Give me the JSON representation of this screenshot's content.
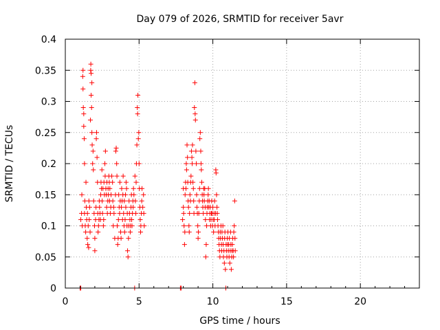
{
  "chart_data": {
    "type": "scatter",
    "title": "Day 079 of 2026, SRMTID for receiver 5avr",
    "xlabel": "GPS time / hours",
    "ylabel": "SRMTID / TECUs",
    "xlim": [
      0,
      24
    ],
    "ylim": [
      0,
      0.4
    ],
    "xticks": [
      0,
      5,
      10,
      15,
      20
    ],
    "xtick_labels": [
      "0",
      "5",
      "10",
      "15",
      "20"
    ],
    "yticks": [
      0,
      0.05,
      0.1,
      0.15,
      0.2,
      0.25,
      0.3,
      0.35,
      0.4
    ],
    "ytick_labels": [
      "0",
      "0.05",
      "0.1",
      "0.15",
      "0.2",
      "0.25",
      "0.3",
      "0.35",
      "0.4"
    ],
    "grid": true,
    "marker": "plus",
    "series_color": "#ff0000",
    "series": [
      {
        "name": "SRMTID",
        "points": [
          [
            1.0,
            0.0
          ],
          [
            1.05,
            0.0
          ],
          [
            1.05,
            0.11
          ],
          [
            1.1,
            0.12
          ],
          [
            1.12,
            0.15
          ],
          [
            1.15,
            0.1
          ],
          [
            1.18,
            0.34
          ],
          [
            1.2,
            0.35
          ],
          [
            1.2,
            0.32
          ],
          [
            1.22,
            0.29
          ],
          [
            1.25,
            0.28
          ],
          [
            1.25,
            0.26
          ],
          [
            1.28,
            0.24
          ],
          [
            1.3,
            0.2
          ],
          [
            1.3,
            0.12
          ],
          [
            1.32,
            0.14
          ],
          [
            1.35,
            0.1
          ],
          [
            1.38,
            0.09
          ],
          [
            1.4,
            0.17
          ],
          [
            1.42,
            0.13
          ],
          [
            1.45,
            0.11
          ],
          [
            1.48,
            0.08
          ],
          [
            1.5,
            0.12
          ],
          [
            1.52,
            0.07
          ],
          [
            1.55,
            0.1
          ],
          [
            1.58,
            0.065
          ],
          [
            1.6,
            0.14
          ],
          [
            1.62,
            0.11
          ],
          [
            1.65,
            0.13
          ],
          [
            1.68,
            0.09
          ],
          [
            1.7,
            0.27
          ],
          [
            1.72,
            0.35
          ],
          [
            1.73,
            0.36
          ],
          [
            1.75,
            0.345
          ],
          [
            1.75,
            0.31
          ],
          [
            1.78,
            0.29
          ],
          [
            1.8,
            0.33
          ],
          [
            1.8,
            0.25
          ],
          [
            1.82,
            0.23
          ],
          [
            1.85,
            0.2
          ],
          [
            1.88,
            0.22
          ],
          [
            1.9,
            0.19
          ],
          [
            1.92,
            0.14
          ],
          [
            1.95,
            0.12
          ],
          [
            1.98,
            0.1
          ],
          [
            2.0,
            0.08
          ],
          [
            2.0,
            0.06
          ],
          [
            2.05,
            0.11
          ],
          [
            2.08,
            0.13
          ],
          [
            2.1,
            0.24
          ],
          [
            2.12,
            0.25
          ],
          [
            2.15,
            0.21
          ],
          [
            2.18,
            0.17
          ],
          [
            2.2,
            0.12
          ],
          [
            2.22,
            0.09
          ],
          [
            2.25,
            0.1
          ],
          [
            2.28,
            0.11
          ],
          [
            2.3,
            0.14
          ],
          [
            2.32,
            0.13
          ],
          [
            2.35,
            0.12
          ],
          [
            2.38,
            0.11
          ],
          [
            2.4,
            0.15
          ],
          [
            2.42,
            0.17
          ],
          [
            2.45,
            0.16
          ],
          [
            2.48,
            0.19
          ],
          [
            2.5,
            0.14
          ],
          [
            2.52,
            0.12
          ],
          [
            2.55,
            0.16
          ],
          [
            2.58,
            0.1
          ],
          [
            2.6,
            0.11
          ],
          [
            2.62,
            0.17
          ],
          [
            2.65,
            0.15
          ],
          [
            2.68,
            0.2
          ],
          [
            2.7,
            0.18
          ],
          [
            2.72,
            0.22
          ],
          [
            2.75,
            0.16
          ],
          [
            2.78,
            0.15
          ],
          [
            2.8,
            0.13
          ],
          [
            2.82,
            0.17
          ],
          [
            2.85,
            0.12
          ],
          [
            2.88,
            0.14
          ],
          [
            2.9,
            0.16
          ],
          [
            2.92,
            0.15
          ],
          [
            2.95,
            0.18
          ],
          [
            2.98,
            0.17
          ],
          [
            3.0,
            0.14
          ],
          [
            3.02,
            0.16
          ],
          [
            3.05,
            0.12
          ],
          [
            3.08,
            0.13
          ],
          [
            3.1,
            0.15
          ],
          [
            3.15,
            0.18
          ],
          [
            3.2,
            0.17
          ],
          [
            3.22,
            0.14
          ],
          [
            3.25,
            0.1
          ],
          [
            3.28,
            0.13
          ],
          [
            3.3,
            0.12
          ],
          [
            3.35,
            0.08
          ],
          [
            3.4,
            0.15
          ],
          [
            3.42,
            0.22
          ],
          [
            3.45,
            0.225
          ],
          [
            3.48,
            0.2
          ],
          [
            3.5,
            0.18
          ],
          [
            3.52,
            0.1
          ],
          [
            3.55,
            0.07
          ],
          [
            3.58,
            0.08
          ],
          [
            3.6,
            0.11
          ],
          [
            3.62,
            0.15
          ],
          [
            3.65,
            0.13
          ],
          [
            3.68,
            0.12
          ],
          [
            3.7,
            0.17
          ],
          [
            3.72,
            0.14
          ],
          [
            3.75,
            0.09
          ],
          [
            3.78,
            0.08
          ],
          [
            3.8,
            0.13
          ],
          [
            3.82,
            0.16
          ],
          [
            3.85,
            0.14
          ],
          [
            3.88,
            0.11
          ],
          [
            3.9,
            0.15
          ],
          [
            3.92,
            0.18
          ],
          [
            3.95,
            0.12
          ],
          [
            3.98,
            0.1
          ],
          [
            4.0,
            0.14
          ],
          [
            4.02,
            0.09
          ],
          [
            4.05,
            0.11
          ],
          [
            4.08,
            0.15
          ],
          [
            4.1,
            0.13
          ],
          [
            4.12,
            0.17
          ],
          [
            4.15,
            0.16
          ],
          [
            4.18,
            0.1
          ],
          [
            4.2,
            0.12
          ],
          [
            4.22,
            0.06
          ],
          [
            4.25,
            0.05
          ],
          [
            4.28,
            0.08
          ],
          [
            4.3,
            0.1
          ],
          [
            4.32,
            0.14
          ],
          [
            4.35,
            0.12
          ],
          [
            4.38,
            0.11
          ],
          [
            4.4,
            0.09
          ],
          [
            4.42,
            0.1
          ],
          [
            4.45,
            0.13
          ],
          [
            4.48,
            0.15
          ],
          [
            4.5,
            0.11
          ],
          [
            4.52,
            0.1
          ],
          [
            4.55,
            0.12
          ],
          [
            4.58,
            0.14
          ],
          [
            4.6,
            0.13
          ],
          [
            4.62,
            0.16
          ],
          [
            4.65,
            0.15
          ],
          [
            4.7,
            0.0
          ],
          [
            4.72,
            0.18
          ],
          [
            4.75,
            0.14
          ],
          [
            4.78,
            0.12
          ],
          [
            4.8,
            0.17
          ],
          [
            4.82,
            0.2
          ],
          [
            4.85,
            0.23
          ],
          [
            4.88,
            0.29
          ],
          [
            4.9,
            0.28
          ],
          [
            4.92,
            0.31
          ],
          [
            4.95,
            0.24
          ],
          [
            4.98,
            0.25
          ],
          [
            5.0,
            0.2
          ],
          [
            5.02,
            0.16
          ],
          [
            5.05,
            0.13
          ],
          [
            5.08,
            0.11
          ],
          [
            5.1,
            0.09
          ],
          [
            5.12,
            0.1
          ],
          [
            5.15,
            0.12
          ],
          [
            5.18,
            0.14
          ],
          [
            5.2,
            0.16
          ],
          [
            5.25,
            0.13
          ],
          [
            5.3,
            0.15
          ],
          [
            5.32,
            0.12
          ],
          [
            5.35,
            0.1
          ],
          [
            7.8,
            0.0
          ],
          [
            7.85,
            0.0
          ],
          [
            7.95,
            0.11
          ],
          [
            8.0,
            0.13
          ],
          [
            8.0,
            0.16
          ],
          [
            8.02,
            0.12
          ],
          [
            8.05,
            0.1
          ],
          [
            8.08,
            0.07
          ],
          [
            8.1,
            0.09
          ],
          [
            8.12,
            0.15
          ],
          [
            8.15,
            0.17
          ],
          [
            8.18,
            0.16
          ],
          [
            8.2,
            0.2
          ],
          [
            8.22,
            0.19
          ],
          [
            8.25,
            0.23
          ],
          [
            8.28,
            0.21
          ],
          [
            8.3,
            0.17
          ],
          [
            8.32,
            0.14
          ],
          [
            8.35,
            0.13
          ],
          [
            8.38,
            0.1
          ],
          [
            8.4,
            0.09
          ],
          [
            8.42,
            0.12
          ],
          [
            8.45,
            0.15
          ],
          [
            8.48,
            0.14
          ],
          [
            8.5,
            0.17
          ],
          [
            8.52,
            0.18
          ],
          [
            8.55,
            0.22
          ],
          [
            8.58,
            0.21
          ],
          [
            8.6,
            0.2
          ],
          [
            8.62,
            0.23
          ],
          [
            8.65,
            0.17
          ],
          [
            8.68,
            0.16
          ],
          [
            8.7,
            0.14
          ],
          [
            8.72,
            0.12
          ],
          [
            8.75,
            0.29
          ],
          [
            8.78,
            0.33
          ],
          [
            8.8,
            0.28
          ],
          [
            8.82,
            0.27
          ],
          [
            8.85,
            0.22
          ],
          [
            8.88,
            0.2
          ],
          [
            8.9,
            0.15
          ],
          [
            8.92,
            0.13
          ],
          [
            8.95,
            0.12
          ],
          [
            8.98,
            0.1
          ],
          [
            9.0,
            0.08
          ],
          [
            9.02,
            0.09
          ],
          [
            9.05,
            0.12
          ],
          [
            9.08,
            0.14
          ],
          [
            9.1,
            0.16
          ],
          [
            9.12,
            0.24
          ],
          [
            9.15,
            0.25
          ],
          [
            9.18,
            0.22
          ],
          [
            9.2,
            0.2
          ],
          [
            9.22,
            0.19
          ],
          [
            9.25,
            0.17
          ],
          [
            9.28,
            0.15
          ],
          [
            9.3,
            0.14
          ],
          [
            9.32,
            0.13
          ],
          [
            9.35,
            0.12
          ],
          [
            9.38,
            0.16
          ],
          [
            9.4,
            0.15
          ],
          [
            9.42,
            0.14
          ],
          [
            9.45,
            0.16
          ],
          [
            9.48,
            0.13
          ],
          [
            9.5,
            0.11
          ],
          [
            9.52,
            0.05
          ],
          [
            9.55,
            0.07
          ],
          [
            9.58,
            0.1
          ],
          [
            9.6,
            0.12
          ],
          [
            9.62,
            0.13
          ],
          [
            9.65,
            0.14
          ],
          [
            9.68,
            0.15
          ],
          [
            9.7,
            0.16
          ],
          [
            9.72,
            0.13
          ],
          [
            9.75,
            0.14
          ],
          [
            9.78,
            0.11
          ],
          [
            9.8,
            0.12
          ],
          [
            9.82,
            0.13
          ],
          [
            9.85,
            0.1
          ],
          [
            9.88,
            0.11
          ],
          [
            9.9,
            0.12
          ],
          [
            9.92,
            0.14
          ],
          [
            9.95,
            0.12
          ],
          [
            9.98,
            0.1
          ],
          [
            10.0,
            0.13
          ],
          [
            10.02,
            0.11
          ],
          [
            10.05,
            0.09
          ],
          [
            10.08,
            0.12
          ],
          [
            10.1,
            0.11
          ],
          [
            10.12,
            0.14
          ],
          [
            10.15,
            0.1
          ],
          [
            10.18,
            0.12
          ],
          [
            10.2,
            0.19
          ],
          [
            10.22,
            0.185
          ],
          [
            10.25,
            0.15
          ],
          [
            10.28,
            0.13
          ],
          [
            10.3,
            0.12
          ],
          [
            10.32,
            0.11
          ],
          [
            10.35,
            0.1
          ],
          [
            10.38,
            0.09
          ],
          [
            10.4,
            0.08
          ],
          [
            10.42,
            0.07
          ],
          [
            10.45,
            0.06
          ],
          [
            10.48,
            0.05
          ],
          [
            10.5,
            0.09
          ],
          [
            10.52,
            0.08
          ],
          [
            10.55,
            0.1
          ],
          [
            10.58,
            0.07
          ],
          [
            10.6,
            0.06
          ],
          [
            10.62,
            0.09
          ],
          [
            10.65,
            0.08
          ],
          [
            10.68,
            0.1
          ],
          [
            10.7,
            0.07
          ],
          [
            10.72,
            0.05
          ],
          [
            10.75,
            0.06
          ],
          [
            10.78,
            0.04
          ],
          [
            10.8,
            0.08
          ],
          [
            10.82,
            0.09
          ],
          [
            10.85,
            0.03
          ],
          [
            10.88,
            0.0
          ],
          [
            10.9,
            0.07
          ],
          [
            10.92,
            0.06
          ],
          [
            10.95,
            0.05
          ],
          [
            10.98,
            0.08
          ],
          [
            11.0,
            0.07
          ],
          [
            11.02,
            0.09
          ],
          [
            11.05,
            0.06
          ],
          [
            11.08,
            0.07
          ],
          [
            11.1,
            0.05
          ],
          [
            11.12,
            0.08
          ],
          [
            11.15,
            0.04
          ],
          [
            11.18,
            0.06
          ],
          [
            11.2,
            0.09
          ],
          [
            11.22,
            0.07
          ],
          [
            11.25,
            0.03
          ],
          [
            11.28,
            0.05
          ],
          [
            11.3,
            0.06
          ],
          [
            11.32,
            0.07
          ],
          [
            11.35,
            0.08
          ],
          [
            11.38,
            0.06
          ],
          [
            11.4,
            0.05
          ],
          [
            11.42,
            0.09
          ],
          [
            11.45,
            0.1
          ],
          [
            11.48,
            0.14
          ],
          [
            11.5,
            0.08
          ],
          [
            11.52,
            0.06
          ]
        ]
      }
    ]
  }
}
